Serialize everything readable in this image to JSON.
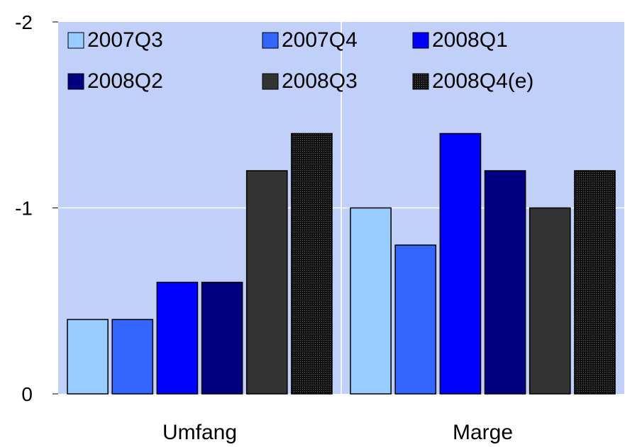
{
  "chart_data": {
    "type": "bar",
    "categories": [
      "Umfang",
      "Marge"
    ],
    "series": [
      {
        "name": "2007Q3",
        "color": "#99ccff",
        "values": [
          -0.4,
          -1.0
        ]
      },
      {
        "name": "2007Q4",
        "color": "#3366ff",
        "values": [
          -0.4,
          -0.8
        ]
      },
      {
        "name": "2008Q1",
        "color": "#0000ff",
        "values": [
          -0.6,
          -1.4
        ]
      },
      {
        "name": "2008Q2",
        "color": "#000080",
        "values": [
          -0.6,
          -1.2
        ]
      },
      {
        "name": "2008Q3",
        "color": "#333333",
        "values": [
          -1.2,
          -1.0
        ]
      },
      {
        "name": "2008Q4(e)",
        "color": "#111111",
        "pattern": "dotted",
        "values": [
          -1.4,
          -1.2
        ]
      }
    ],
    "yticks": [
      "-2",
      "-1",
      "0"
    ],
    "ylim": [
      0,
      -2
    ],
    "y_axis_inverted": true,
    "grid": true,
    "plot_background": "#c0d0f8",
    "legend_position": "top-left inside plot, 3 columns"
  }
}
